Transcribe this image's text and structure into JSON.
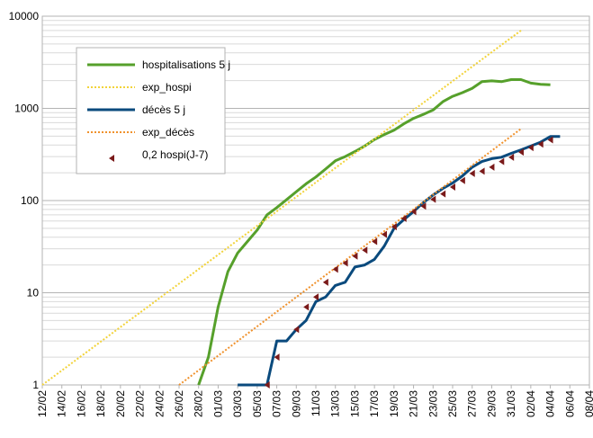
{
  "chart_data": {
    "type": "line",
    "title": "",
    "xlabel": "",
    "ylabel": "",
    "yscale": "log",
    "ylim": [
      1,
      10000
    ],
    "grid": true,
    "legend_position": "top-left",
    "y_ticks": [
      "1",
      "10",
      "100",
      "1000",
      "10000"
    ],
    "x_ticks": [
      "12/02",
      "14/02",
      "16/02",
      "18/02",
      "20/02",
      "22/02",
      "24/02",
      "26/02",
      "28/02",
      "01/03",
      "03/03",
      "05/03",
      "07/03",
      "09/03",
      "11/03",
      "13/03",
      "15/03",
      "17/03",
      "19/03",
      "21/03",
      "23/03",
      "25/03",
      "27/03",
      "29/03",
      "31/03",
      "02/04",
      "04/04",
      "06/04",
      "08/04"
    ],
    "x_day_range": [
      0,
      56
    ],
    "series": [
      {
        "name": "hospitalisations 5 j",
        "style": "line",
        "color": "#56a02b",
        "points": [
          [
            16,
            1
          ],
          [
            17,
            2
          ],
          [
            18,
            7
          ],
          [
            19,
            17
          ],
          [
            20,
            27
          ],
          [
            21,
            36
          ],
          [
            22,
            48
          ],
          [
            23,
            70
          ],
          [
            24,
            84
          ],
          [
            25,
            102
          ],
          [
            26,
            125
          ],
          [
            27,
            152
          ],
          [
            28,
            180
          ],
          [
            29,
            220
          ],
          [
            30,
            270
          ],
          [
            31,
            300
          ],
          [
            32,
            340
          ],
          [
            33,
            390
          ],
          [
            34,
            460
          ],
          [
            35,
            520
          ],
          [
            36,
            580
          ],
          [
            37,
            680
          ],
          [
            38,
            780
          ],
          [
            39,
            860
          ],
          [
            40,
            960
          ],
          [
            41,
            1180
          ],
          [
            42,
            1350
          ],
          [
            43,
            1480
          ],
          [
            44,
            1650
          ],
          [
            45,
            1950
          ],
          [
            46,
            1990
          ],
          [
            47,
            1950
          ],
          [
            48,
            2050
          ],
          [
            49,
            2050
          ],
          [
            50,
            1880
          ],
          [
            51,
            1820
          ],
          [
            52,
            1800
          ]
        ]
      },
      {
        "name": "exp_hospi",
        "style": "dotted",
        "color": "#f2d33a",
        "points": [
          [
            0,
            1
          ],
          [
            49,
            7000
          ]
        ]
      },
      {
        "name": "décès 5 j",
        "style": "line",
        "color": "#0a4a7d",
        "points": [
          [
            20,
            1
          ],
          [
            21,
            1
          ],
          [
            22,
            1
          ],
          [
            23,
            1
          ],
          [
            24,
            3
          ],
          [
            25,
            3
          ],
          [
            26,
            4
          ],
          [
            27,
            5
          ],
          [
            28,
            8
          ],
          [
            29,
            9
          ],
          [
            30,
            12
          ],
          [
            31,
            13
          ],
          [
            32,
            19
          ],
          [
            33,
            20
          ],
          [
            34,
            23
          ],
          [
            35,
            32
          ],
          [
            36,
            50
          ],
          [
            37,
            62
          ],
          [
            38,
            76
          ],
          [
            39,
            95
          ],
          [
            40,
            115
          ],
          [
            41,
            135
          ],
          [
            42,
            155
          ],
          [
            43,
            185
          ],
          [
            44,
            230
          ],
          [
            45,
            265
          ],
          [
            46,
            285
          ],
          [
            47,
            295
          ],
          [
            48,
            325
          ],
          [
            49,
            355
          ],
          [
            50,
            390
          ],
          [
            51,
            430
          ],
          [
            52,
            495
          ],
          [
            53,
            495
          ]
        ]
      },
      {
        "name": "exp_décès",
        "style": "dotted",
        "color": "#f0922d",
        "points": [
          [
            14,
            1
          ],
          [
            49,
            600
          ]
        ]
      },
      {
        "name": "0,2 hospi(J-7)",
        "style": "markers",
        "color": "#7a1a1a",
        "points": [
          [
            23,
            1
          ],
          [
            24,
            2
          ],
          [
            26,
            4
          ],
          [
            27,
            7
          ],
          [
            28,
            9
          ],
          [
            29,
            13
          ],
          [
            30,
            18
          ],
          [
            31,
            21
          ],
          [
            32,
            25
          ],
          [
            33,
            29
          ],
          [
            34,
            36
          ],
          [
            35,
            43
          ],
          [
            36,
            52
          ],
          [
            37,
            64
          ],
          [
            38,
            76
          ],
          [
            39,
            87
          ],
          [
            40,
            103
          ],
          [
            41,
            118
          ],
          [
            42,
            140
          ],
          [
            43,
            165
          ],
          [
            44,
            197
          ],
          [
            45,
            208
          ],
          [
            46,
            230
          ],
          [
            47,
            265
          ],
          [
            48,
            295
          ],
          [
            49,
            335
          ],
          [
            50,
            375
          ],
          [
            51,
            410
          ],
          [
            52,
            455
          ]
        ]
      }
    ]
  }
}
